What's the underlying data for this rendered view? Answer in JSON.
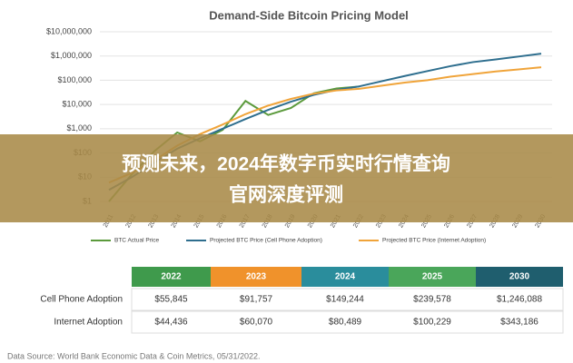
{
  "chart_data": {
    "type": "line",
    "title": "Demand-Side Bitcoin Pricing Model",
    "categories": [
      "2011",
      "2012",
      "2013",
      "2014",
      "2015",
      "2016",
      "2017",
      "2018",
      "2019",
      "2020",
      "2021",
      "2022",
      "2023",
      "2024",
      "2025",
      "2026",
      "2027",
      "2028",
      "2029",
      "2030"
    ],
    "series": [
      {
        "name": "BTC Actual Price",
        "color": "#5b9a3c",
        "values": [
          1,
          13,
          120,
          700,
          300,
          900,
          14000,
          3700,
          7200,
          29000,
          46000,
          55000,
          null,
          null,
          null,
          null,
          null,
          null,
          null,
          null
        ]
      },
      {
        "name": "Projected BTC Price (Cell Phone Adoption)",
        "color": "#2e6e8e",
        "values": [
          3,
          10,
          40,
          150,
          400,
          1000,
          2500,
          6000,
          13000,
          25000,
          40000,
          55845,
          91757,
          149244,
          239578,
          380000,
          560000,
          720000,
          950000,
          1246088
        ]
      },
      {
        "name": "Projected BTC Price (Internet Adoption)",
        "color": "#f0a43a",
        "values": [
          6,
          15,
          50,
          200,
          600,
          1500,
          4000,
          9000,
          17000,
          28000,
          38000,
          44436,
          60070,
          80489,
          100229,
          140000,
          180000,
          230000,
          280000,
          343186
        ]
      }
    ],
    "ylim": [
      1,
      10000000
    ],
    "log_y": true,
    "grid": true,
    "yticks": [
      {
        "value": 1,
        "label": "$1"
      },
      {
        "value": 10,
        "label": "$10"
      },
      {
        "value": 100,
        "label": "$100"
      },
      {
        "value": 1000,
        "label": "$1,000"
      },
      {
        "value": 10000,
        "label": "$10,000"
      },
      {
        "value": 100000,
        "label": "$100,000"
      },
      {
        "value": 1000000,
        "label": "$1,000,000"
      },
      {
        "value": 10000000,
        "label": "$10,000,000"
      }
    ],
    "legend": "bottom"
  },
  "table": {
    "columns": [
      "2022",
      "2023",
      "2024",
      "2025",
      "2030"
    ],
    "column_colors": [
      "#3f9a4c",
      "#f0922b",
      "#2a8d9c",
      "#4aa65a",
      "#1f5e6e"
    ],
    "rows": [
      [
        "Cell Phone Adoption",
        "$55,845",
        "$91,757",
        "$149,244",
        "$239,578",
        "$1,246,088"
      ],
      [
        "Internet Adoption",
        "$44,436",
        "$60,070",
        "$80,489",
        "$100,229",
        "$343,186"
      ]
    ]
  },
  "source": "Data Source: World Bank Economic Data & Coin Metrics, 05/31/2022.",
  "banner": {
    "lines": [
      "预测未来，2024年数字币实时行情查询",
      "官网深度评测"
    ]
  }
}
